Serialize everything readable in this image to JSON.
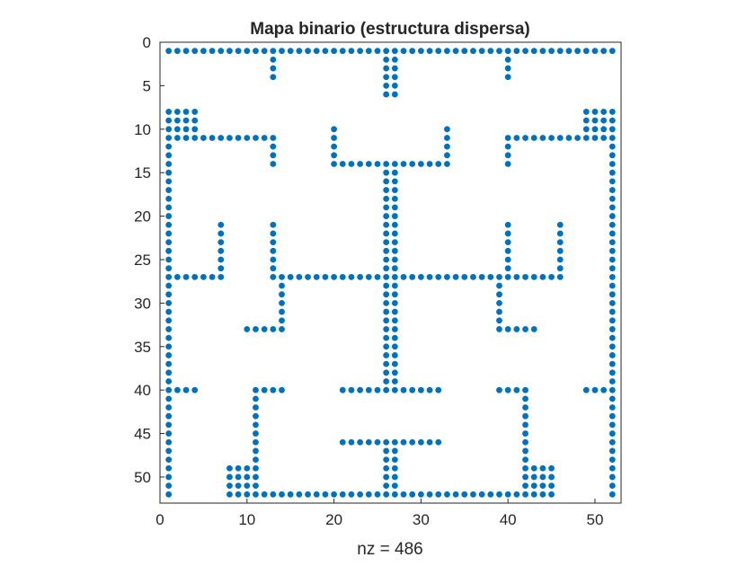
{
  "chart_data": {
    "type": "scatter",
    "title": "Mapa binario (estructura dispersa)",
    "xlabel": "nz = 486",
    "ylabel": "",
    "xlim": [
      0,
      53
    ],
    "ylim": [
      0,
      53
    ],
    "y_axis_reversed": true,
    "xticks": [
      0,
      10,
      20,
      30,
      40,
      50
    ],
    "yticks": [
      0,
      5,
      10,
      15,
      20,
      25,
      30,
      35,
      40,
      45,
      50
    ],
    "grid": false,
    "legend": "none",
    "marker_color": "#0072BD",
    "description_of_points": "column (x) and row (y) indices of the nonzero entries",
    "segments": [
      {
        "orient": "h",
        "at": 1,
        "from": 1,
        "to": 52
      },
      {
        "orient": "v",
        "at": 13,
        "from": 2,
        "to": 4
      },
      {
        "orient": "v",
        "at": 26,
        "from": 2,
        "to": 6
      },
      {
        "orient": "v",
        "at": 27,
        "from": 2,
        "to": 6
      },
      {
        "orient": "v",
        "at": 40,
        "from": 2,
        "to": 4
      },
      {
        "orient": "h",
        "at": 8,
        "from": 1,
        "to": 4
      },
      {
        "orient": "h",
        "at": 9,
        "from": 1,
        "to": 4
      },
      {
        "orient": "h",
        "at": 10,
        "from": 1,
        "to": 4
      },
      {
        "orient": "h",
        "at": 8,
        "from": 49,
        "to": 52
      },
      {
        "orient": "h",
        "at": 9,
        "from": 49,
        "to": 52
      },
      {
        "orient": "h",
        "at": 10,
        "from": 49,
        "to": 52
      },
      {
        "orient": "h",
        "at": 11,
        "from": 1,
        "to": 13
      },
      {
        "orient": "v",
        "at": 13,
        "from": 11,
        "to": 14
      },
      {
        "orient": "h",
        "at": 11,
        "from": 40,
        "to": 52
      },
      {
        "orient": "v",
        "at": 40,
        "from": 11,
        "to": 14
      },
      {
        "orient": "v",
        "at": 20,
        "from": 10,
        "to": 14
      },
      {
        "orient": "v",
        "at": 33,
        "from": 10,
        "to": 14
      },
      {
        "orient": "h",
        "at": 14,
        "from": 20,
        "to": 33
      },
      {
        "orient": "v",
        "at": 26,
        "from": 14,
        "to": 40
      },
      {
        "orient": "v",
        "at": 27,
        "from": 14,
        "to": 40
      },
      {
        "orient": "v",
        "at": 1,
        "from": 8,
        "to": 52
      },
      {
        "orient": "v",
        "at": 52,
        "from": 8,
        "to": 52
      },
      {
        "orient": "v",
        "at": 7,
        "from": 21,
        "to": 27
      },
      {
        "orient": "v",
        "at": 13,
        "from": 21,
        "to": 27
      },
      {
        "orient": "v",
        "at": 40,
        "from": 21,
        "to": 27
      },
      {
        "orient": "v",
        "at": 46,
        "from": 21,
        "to": 27
      },
      {
        "orient": "h",
        "at": 27,
        "from": 1,
        "to": 7
      },
      {
        "orient": "h",
        "at": 27,
        "from": 13,
        "to": 46
      },
      {
        "orient": "v",
        "at": 14,
        "from": 28,
        "to": 33
      },
      {
        "orient": "h",
        "at": 33,
        "from": 10,
        "to": 14
      },
      {
        "orient": "v",
        "at": 39,
        "from": 28,
        "to": 33
      },
      {
        "orient": "h",
        "at": 33,
        "from": 39,
        "to": 43
      },
      {
        "orient": "h",
        "at": 40,
        "from": 1,
        "to": 4
      },
      {
        "orient": "h",
        "at": 40,
        "from": 49,
        "to": 52
      },
      {
        "orient": "h",
        "at": 40,
        "from": 11,
        "to": 14
      },
      {
        "orient": "v",
        "at": 11,
        "from": 40,
        "to": 52
      },
      {
        "orient": "h",
        "at": 40,
        "from": 39,
        "to": 42
      },
      {
        "orient": "v",
        "at": 42,
        "from": 40,
        "to": 52
      },
      {
        "orient": "h",
        "at": 40,
        "from": 21,
        "to": 32
      },
      {
        "orient": "h",
        "at": 46,
        "from": 21,
        "to": 32
      },
      {
        "orient": "v",
        "at": 26,
        "from": 46,
        "to": 52
      },
      {
        "orient": "v",
        "at": 27,
        "from": 46,
        "to": 52
      },
      {
        "orient": "h",
        "at": 49,
        "from": 8,
        "to": 11
      },
      {
        "orient": "h",
        "at": 50,
        "from": 8,
        "to": 11
      },
      {
        "orient": "h",
        "at": 51,
        "from": 8,
        "to": 11
      },
      {
        "orient": "h",
        "at": 49,
        "from": 42,
        "to": 45
      },
      {
        "orient": "h",
        "at": 50,
        "from": 42,
        "to": 45
      },
      {
        "orient": "h",
        "at": 51,
        "from": 42,
        "to": 45
      },
      {
        "orient": "h",
        "at": 52,
        "from": 1,
        "to": 1
      },
      {
        "orient": "h",
        "at": 52,
        "from": 8,
        "to": 45
      },
      {
        "orient": "h",
        "at": 52,
        "from": 52,
        "to": 52
      }
    ]
  }
}
